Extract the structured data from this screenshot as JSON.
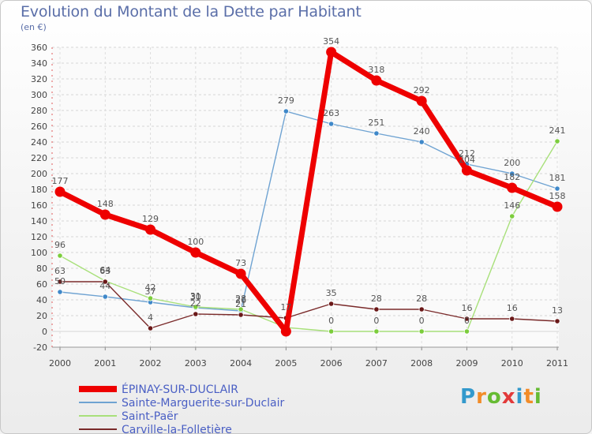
{
  "header": {
    "title": "Evolution du Montant de la Dette par Habitant",
    "subtitle": "(en €)"
  },
  "logo": {
    "letters": [
      "P",
      "r",
      "o",
      "x",
      "i",
      "t",
      "i"
    ],
    "colors": [
      "#3399cc",
      "#f28c28",
      "#66bb33",
      "#e23a3a",
      "#3399cc",
      "#f28c28",
      "#66bb33"
    ]
  },
  "chart_data": {
    "type": "line",
    "x": [
      "2000",
      "2001",
      "2002",
      "2003",
      "2004",
      "2005",
      "2006",
      "2007",
      "2008",
      "2009",
      "2010",
      "2011"
    ],
    "ylim": [
      -20,
      360
    ],
    "yticks": [
      -20,
      0,
      20,
      40,
      60,
      80,
      100,
      120,
      140,
      160,
      180,
      200,
      220,
      240,
      260,
      280,
      300,
      320,
      340,
      360
    ],
    "grid": true,
    "legend_position": "bottom-left",
    "series": [
      {
        "name": "Sainte-Marguerite-sur-Duclair",
        "color": "#6fa3d2",
        "marker": "#3f88c9",
        "values": [
          50,
          44,
          37,
          30,
          26,
          279,
          263,
          251,
          240,
          212,
          200,
          181
        ],
        "labels": [
          "50",
          "44",
          "37",
          "30",
          "26",
          "279",
          "263",
          "251",
          "240",
          "212",
          "200",
          "181"
        ]
      },
      {
        "name": "Saint-Paër",
        "color": "#a8e07a",
        "marker": "#7ccd3c",
        "values": [
          96,
          64,
          42,
          31,
          28,
          5,
          0,
          0,
          0,
          0,
          146,
          241
        ],
        "labels": [
          "96",
          "64",
          "42",
          "31",
          "28",
          "",
          "0",
          "0",
          "0",
          "0",
          "146",
          "241"
        ]
      },
      {
        "name": "Carville-la-Folletière",
        "color": "#7a2a2a",
        "marker": "#6a1818",
        "values": [
          63,
          63,
          4,
          22,
          21,
          17,
          35,
          28,
          28,
          16,
          16,
          13
        ],
        "labels": [
          "63",
          "63",
          "4",
          "22",
          "21",
          "17",
          "35",
          "28",
          "28",
          "16",
          "16",
          "13"
        ]
      },
      {
        "name": "ÉPINAY-SUR-DUCLAIR",
        "color": "#ee0000",
        "marker": "#ee0000",
        "values": [
          177,
          148,
          129,
          100,
          73,
          0,
          354,
          318,
          292,
          204,
          182,
          158
        ],
        "labels": [
          "177",
          "148",
          "129",
          "100",
          "73",
          "",
          "354",
          "318",
          "292",
          "204",
          "182",
          "158"
        ]
      }
    ],
    "legend": [
      "ÉPINAY-SUR-DUCLAIR",
      "Sainte-Marguerite-sur-Duclair",
      "Saint-Paër",
      "Carville-la-Folletière"
    ]
  }
}
